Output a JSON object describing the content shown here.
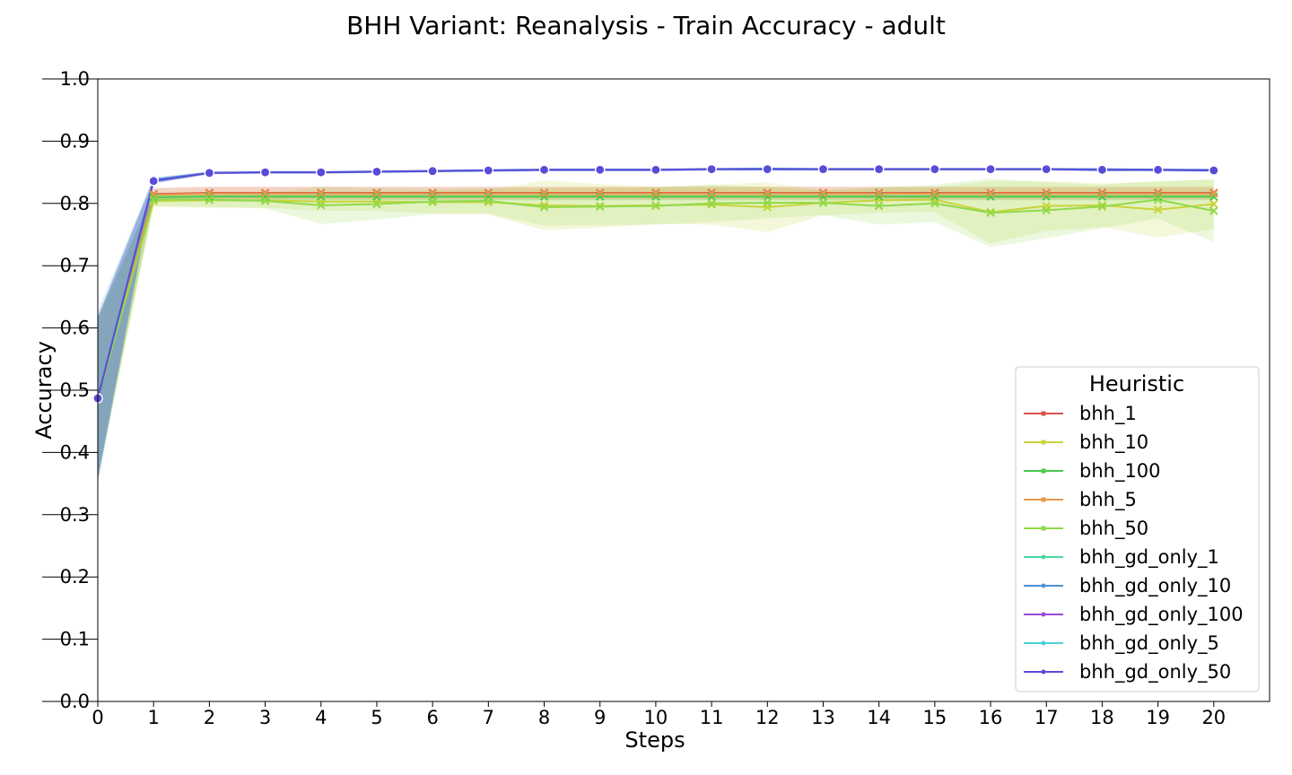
{
  "chart_data": {
    "type": "line",
    "title": "BHH Variant: Reanalysis - Train Accuracy - adult",
    "xlabel": "Steps",
    "ylabel": "Accuracy",
    "xlim": [
      0,
      21
    ],
    "ylim": [
      0,
      1.0
    ],
    "x": [
      0,
      1,
      2,
      3,
      4,
      5,
      6,
      7,
      8,
      9,
      10,
      11,
      12,
      13,
      14,
      15,
      16,
      17,
      18,
      19,
      20
    ],
    "x_ticks": [
      "0",
      "1",
      "2",
      "3",
      "4",
      "5",
      "6",
      "7",
      "8",
      "9",
      "10",
      "11",
      "12",
      "13",
      "14",
      "15",
      "16",
      "17",
      "18",
      "19",
      "20"
    ],
    "y_ticks": [
      "0.0",
      "0.1",
      "0.2",
      "0.3",
      "0.4",
      "0.5",
      "0.6",
      "0.7",
      "0.8",
      "0.9",
      "1.0"
    ],
    "grid": false,
    "legend": {
      "title": "Heuristic",
      "placement": "lower-right"
    },
    "series": [
      {
        "name": "bhh_1",
        "color": "#d9534f",
        "marker": "x",
        "values": [
          0.487,
          0.815,
          0.817,
          0.817,
          0.817,
          0.817,
          0.817,
          0.817,
          0.817,
          0.817,
          0.817,
          0.817,
          0.817,
          0.817,
          0.817,
          0.817,
          0.817,
          0.817,
          0.817,
          0.817,
          0.817
        ],
        "band": [
          0.012,
          0.01,
          0.01,
          0.01,
          0.01,
          0.01,
          0.01,
          0.01,
          0.01,
          0.01,
          0.01,
          0.01,
          0.01,
          0.01,
          0.01,
          0.01,
          0.01,
          0.01,
          0.01,
          0.01,
          0.01
        ]
      },
      {
        "name": "bhh_10",
        "color": "#c9d43a",
        "marker": "x",
        "values": [
          0.487,
          0.804,
          0.805,
          0.805,
          0.803,
          0.803,
          0.802,
          0.802,
          0.797,
          0.796,
          0.797,
          0.798,
          0.794,
          0.801,
          0.805,
          0.806,
          0.786,
          0.796,
          0.797,
          0.79,
          0.799
        ],
        "band": [
          0.13,
          0.01,
          0.012,
          0.012,
          0.015,
          0.015,
          0.018,
          0.02,
          0.04,
          0.035,
          0.03,
          0.032,
          0.04,
          0.02,
          0.02,
          0.02,
          0.05,
          0.04,
          0.035,
          0.045,
          0.04
        ]
      },
      {
        "name": "bhh_100",
        "color": "#4cc94c",
        "marker": "x",
        "values": [
          0.487,
          0.81,
          0.811,
          0.811,
          0.811,
          0.811,
          0.811,
          0.811,
          0.811,
          0.811,
          0.811,
          0.811,
          0.811,
          0.811,
          0.811,
          0.811,
          0.811,
          0.811,
          0.811,
          0.811,
          0.811
        ],
        "band": [
          0.13,
          0.006,
          0.006,
          0.006,
          0.006,
          0.006,
          0.006,
          0.006,
          0.006,
          0.006,
          0.006,
          0.006,
          0.006,
          0.006,
          0.006,
          0.006,
          0.006,
          0.006,
          0.006,
          0.006,
          0.006
        ]
      },
      {
        "name": "bhh_5",
        "color": "#e69a4a",
        "marker": "x",
        "values": [
          0.487,
          0.814,
          0.816,
          0.816,
          0.816,
          0.816,
          0.816,
          0.816,
          0.816,
          0.816,
          0.816,
          0.816,
          0.816,
          0.816,
          0.816,
          0.816,
          0.816,
          0.816,
          0.816,
          0.816,
          0.816
        ],
        "band": [
          0.12,
          0.01,
          0.01,
          0.01,
          0.01,
          0.01,
          0.01,
          0.01,
          0.01,
          0.01,
          0.01,
          0.01,
          0.01,
          0.01,
          0.01,
          0.01,
          0.01,
          0.01,
          0.01,
          0.01,
          0.01
        ]
      },
      {
        "name": "bhh_50",
        "color": "#8fd94a",
        "marker": "x",
        "values": [
          0.487,
          0.806,
          0.806,
          0.804,
          0.797,
          0.799,
          0.803,
          0.804,
          0.794,
          0.795,
          0.796,
          0.8,
          0.801,
          0.801,
          0.796,
          0.8,
          0.785,
          0.789,
          0.795,
          0.806,
          0.788
        ],
        "band": [
          0.13,
          0.01,
          0.012,
          0.012,
          0.03,
          0.025,
          0.02,
          0.02,
          0.03,
          0.03,
          0.03,
          0.03,
          0.025,
          0.02,
          0.03,
          0.03,
          0.055,
          0.045,
          0.035,
          0.03,
          0.05
        ]
      },
      {
        "name": "bhh_gd_only_1",
        "color": "#4ad9a0",
        "marker": "o",
        "values": [
          0.487,
          0.837,
          0.849,
          0.85,
          0.85,
          0.851,
          0.852,
          0.853,
          0.854,
          0.854,
          0.854,
          0.855,
          0.855,
          0.855,
          0.855,
          0.855,
          0.855,
          0.855,
          0.854,
          0.854,
          0.853
        ],
        "band": [
          0.13,
          0.004,
          0.002,
          0.002,
          0.002,
          0.002,
          0.002,
          0.002,
          0.002,
          0.002,
          0.002,
          0.002,
          0.002,
          0.002,
          0.002,
          0.002,
          0.002,
          0.002,
          0.002,
          0.002,
          0.002
        ]
      },
      {
        "name": "bhh_gd_only_10",
        "color": "#4a90d9",
        "marker": "o",
        "values": [
          0.487,
          0.838,
          0.849,
          0.85,
          0.85,
          0.851,
          0.852,
          0.853,
          0.854,
          0.854,
          0.854,
          0.855,
          0.856,
          0.855,
          0.855,
          0.855,
          0.855,
          0.855,
          0.855,
          0.854,
          0.854
        ],
        "band": [
          0.14,
          0.004,
          0.002,
          0.002,
          0.002,
          0.002,
          0.002,
          0.002,
          0.002,
          0.002,
          0.002,
          0.002,
          0.002,
          0.002,
          0.002,
          0.002,
          0.002,
          0.002,
          0.002,
          0.002,
          0.002
        ]
      },
      {
        "name": "bhh_gd_only_100",
        "color": "#9a4ad9",
        "marker": "o",
        "values": [
          0.487,
          0.836,
          0.849,
          0.85,
          0.85,
          0.851,
          0.852,
          0.853,
          0.854,
          0.854,
          0.854,
          0.855,
          0.855,
          0.855,
          0.855,
          0.855,
          0.855,
          0.855,
          0.854,
          0.854,
          0.853
        ],
        "band": [
          0.13,
          0.004,
          0.002,
          0.002,
          0.002,
          0.002,
          0.002,
          0.002,
          0.002,
          0.002,
          0.002,
          0.002,
          0.002,
          0.002,
          0.002,
          0.002,
          0.002,
          0.002,
          0.002,
          0.002,
          0.002
        ]
      },
      {
        "name": "bhh_gd_only_5",
        "color": "#4ad0d9",
        "marker": "o",
        "values": [
          0.487,
          0.836,
          0.849,
          0.85,
          0.85,
          0.851,
          0.852,
          0.853,
          0.854,
          0.854,
          0.854,
          0.855,
          0.855,
          0.855,
          0.855,
          0.855,
          0.855,
          0.855,
          0.854,
          0.854,
          0.853
        ],
        "band": [
          0.13,
          0.004,
          0.002,
          0.002,
          0.002,
          0.002,
          0.002,
          0.002,
          0.002,
          0.002,
          0.002,
          0.002,
          0.002,
          0.002,
          0.002,
          0.002,
          0.002,
          0.002,
          0.002,
          0.002,
          0.002
        ]
      },
      {
        "name": "bhh_gd_only_50",
        "color": "#5a4ad9",
        "marker": "o",
        "values": [
          0.487,
          0.836,
          0.849,
          0.85,
          0.85,
          0.851,
          0.852,
          0.853,
          0.854,
          0.854,
          0.854,
          0.855,
          0.855,
          0.855,
          0.855,
          0.855,
          0.855,
          0.855,
          0.854,
          0.854,
          0.853
        ],
        "band": [
          0.13,
          0.004,
          0.002,
          0.002,
          0.002,
          0.002,
          0.002,
          0.002,
          0.002,
          0.002,
          0.002,
          0.002,
          0.002,
          0.002,
          0.002,
          0.002,
          0.002,
          0.002,
          0.002,
          0.002,
          0.002
        ]
      }
    ]
  }
}
